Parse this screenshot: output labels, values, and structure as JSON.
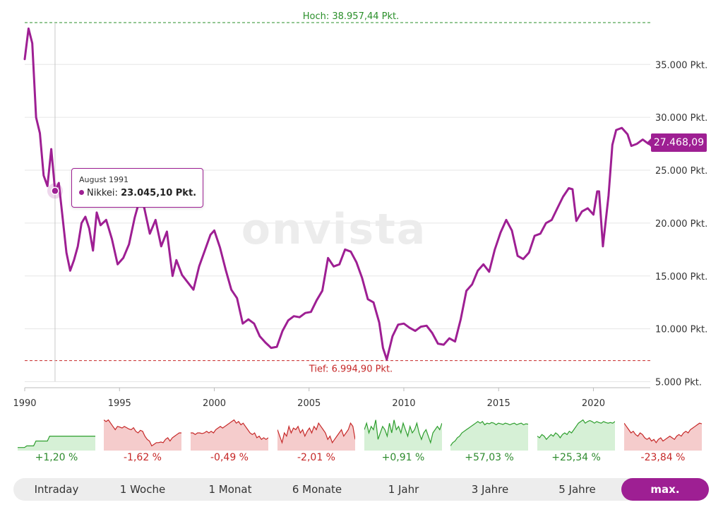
{
  "chart_data": {
    "type": "line",
    "series": [
      {
        "name": "Nikkei",
        "x": [
          1990.0,
          1990.2,
          1990.4,
          1990.6,
          1990.8,
          1991.0,
          1991.2,
          1991.4,
          1991.6,
          1991.8,
          1992.0,
          1992.2,
          1992.4,
          1992.6,
          1992.8,
          1993.0,
          1993.2,
          1993.4,
          1993.6,
          1993.8,
          1994.0,
          1994.3,
          1994.6,
          1994.9,
          1995.2,
          1995.5,
          1995.8,
          1996.0,
          1996.3,
          1996.6,
          1996.9,
          1997.2,
          1997.5,
          1997.8,
          1998.0,
          1998.3,
          1998.6,
          1998.9,
          1999.2,
          1999.5,
          1999.8,
          2000.0,
          2000.3,
          2000.6,
          2000.9,
          2001.2,
          2001.5,
          2001.8,
          2002.1,
          2002.4,
          2002.7,
          2003.0,
          2003.3,
          2003.6,
          2003.9,
          2004.2,
          2004.5,
          2004.8,
          2005.1,
          2005.4,
          2005.7,
          2006.0,
          2006.3,
          2006.6,
          2006.9,
          2007.2,
          2007.5,
          2007.8,
          2008.1,
          2008.4,
          2008.7,
          2008.9,
          2009.1,
          2009.4,
          2009.7,
          2010.0,
          2010.3,
          2010.6,
          2010.9,
          2011.2,
          2011.5,
          2011.8,
          2012.1,
          2012.4,
          2012.7,
          2013.0,
          2013.3,
          2013.6,
          2013.9,
          2014.2,
          2014.5,
          2014.8,
          2015.1,
          2015.4,
          2015.7,
          2016.0,
          2016.3,
          2016.6,
          2016.9,
          2017.2,
          2017.5,
          2017.8,
          2018.1,
          2018.4,
          2018.7,
          2018.9,
          2019.1,
          2019.4,
          2019.7,
          2020.0,
          2020.2,
          2020.3,
          2020.5,
          2020.8,
          2021.0,
          2021.2,
          2021.5,
          2021.8,
          2022.0,
          2022.3,
          2022.6,
          2022.9,
          2023.0
        ],
        "values": [
          35500,
          38400,
          37000,
          30000,
          28500,
          24500,
          23500,
          27000,
          23045,
          23800,
          20500,
          17200,
          15500,
          16500,
          17800,
          20000,
          20600,
          19500,
          17400,
          21000,
          19800,
          20300,
          18500,
          16100,
          16700,
          18000,
          20500,
          21800,
          21500,
          19000,
          20300,
          17800,
          19200,
          15000,
          16500,
          15100,
          14400,
          13700,
          15900,
          17400,
          18900,
          19300,
          17700,
          15600,
          13700,
          12900,
          10500,
          10900,
          10500,
          9300,
          8700,
          8200,
          8300,
          9800,
          10800,
          11200,
          11100,
          11500,
          11600,
          12700,
          13600,
          16700,
          15900,
          16100,
          17500,
          17300,
          16300,
          14800,
          12800,
          12500,
          10600,
          8200,
          7100,
          9300,
          10400,
          10500,
          10100,
          9800,
          10200,
          10300,
          9600,
          8600,
          8500,
          9100,
          8800,
          10900,
          13600,
          14200,
          15500,
          16100,
          15400,
          17500,
          19100,
          20300,
          19300,
          16900,
          16600,
          17200,
          18800,
          19000,
          20000,
          20300,
          21400,
          22500,
          23300,
          23200,
          20200,
          21100,
          21400,
          20800,
          23000,
          23000,
          17800,
          22600,
          27400,
          28800,
          29000,
          28400,
          27300,
          27500,
          27900,
          27500,
          27468
        ]
      }
    ],
    "xlim": [
      1990,
      2023
    ],
    "ylim": [
      4500,
      38960
    ],
    "x_ticks": [
      "1990",
      "1995",
      "2000",
      "2005",
      "2010",
      "2015",
      "2020"
    ],
    "y_ticks": [
      "5.000 Pkt.",
      "10.000 Pkt.",
      "15.000 Pkt.",
      "20.000 Pkt.",
      "25.000 Pkt.",
      "30.000 Pkt.",
      "35.000 Pkt."
    ],
    "high": {
      "value": 38957.44,
      "label": "Hoch: 38.957,44 Pkt."
    },
    "low": {
      "value": 6994.9,
      "label": "Tief: 6.994,90 Pkt."
    },
    "last_price": "27.468,09",
    "tooltip": {
      "date": "August 1991",
      "series": "Nikkei",
      "value": "23.045,10 Pkt.",
      "x": 1991.6,
      "y": 23045
    },
    "watermark": "onvista",
    "colors": {
      "line": "#9e1f93",
      "high": "#2a8f2a",
      "low": "#c62828",
      "grid": "#e6e6e6"
    }
  },
  "performance": [
    {
      "pct": "+1,20 %",
      "trend": "up",
      "spark": [
        0.05,
        0.05,
        0.05,
        0.05,
        0.1,
        0.1,
        0.1,
        0.1,
        0.25,
        0.25,
        0.25,
        0.25,
        0.25,
        0.25,
        0.4,
        0.4,
        0.4,
        0.4,
        0.4,
        0.4,
        0.4,
        0.4,
        0.4,
        0.4,
        0.4,
        0.4,
        0.4,
        0.4,
        0.4,
        0.4,
        0.4,
        0.4,
        0.4,
        0.4,
        0.4
      ]
    },
    {
      "pct": "-1,62 %",
      "trend": "down",
      "spark": [
        0.9,
        0.85,
        0.9,
        0.8,
        0.7,
        0.6,
        0.7,
        0.68,
        0.65,
        0.7,
        0.66,
        0.62,
        0.6,
        0.66,
        0.55,
        0.5,
        0.58,
        0.55,
        0.4,
        0.3,
        0.25,
        0.1,
        0.15,
        0.2,
        0.2,
        0.22,
        0.2,
        0.3,
        0.35,
        0.25,
        0.35,
        0.4,
        0.45,
        0.5,
        0.5
      ]
    },
    {
      "pct": "-0,49 %",
      "trend": "down",
      "spark": [
        0.5,
        0.5,
        0.45,
        0.5,
        0.5,
        0.48,
        0.5,
        0.55,
        0.5,
        0.55,
        0.5,
        0.6,
        0.65,
        0.7,
        0.65,
        0.7,
        0.75,
        0.8,
        0.85,
        0.9,
        0.8,
        0.85,
        0.75,
        0.8,
        0.7,
        0.6,
        0.5,
        0.45,
        0.5,
        0.35,
        0.4,
        0.3,
        0.35,
        0.3,
        0.35
      ]
    },
    {
      "pct": "-2,01 %",
      "trend": "down",
      "spark": [
        0.6,
        0.4,
        0.2,
        0.5,
        0.4,
        0.7,
        0.5,
        0.65,
        0.6,
        0.7,
        0.5,
        0.6,
        0.4,
        0.55,
        0.65,
        0.5,
        0.7,
        0.6,
        0.8,
        0.7,
        0.6,
        0.5,
        0.3,
        0.4,
        0.2,
        0.3,
        0.4,
        0.5,
        0.6,
        0.4,
        0.5,
        0.6,
        0.8,
        0.7,
        0.3
      ]
    },
    {
      "pct": "+0,91 %",
      "trend": "up",
      "spark": [
        0.6,
        0.8,
        0.5,
        0.7,
        0.6,
        0.9,
        0.3,
        0.5,
        0.7,
        0.6,
        0.4,
        0.8,
        0.5,
        0.9,
        0.6,
        0.7,
        0.5,
        0.8,
        0.6,
        0.4,
        0.7,
        0.5,
        0.6,
        0.8,
        0.5,
        0.3,
        0.5,
        0.6,
        0.4,
        0.2,
        0.5,
        0.6,
        0.7,
        0.6,
        0.8
      ]
    },
    {
      "pct": "+57,03 %",
      "trend": "up",
      "spark": [
        0.1,
        0.2,
        0.25,
        0.35,
        0.4,
        0.5,
        0.55,
        0.6,
        0.65,
        0.7,
        0.75,
        0.8,
        0.85,
        0.8,
        0.85,
        0.75,
        0.8,
        0.78,
        0.82,
        0.8,
        0.75,
        0.8,
        0.78,
        0.76,
        0.8,
        0.78,
        0.75,
        0.78,
        0.8,
        0.75,
        0.78,
        0.8,
        0.75,
        0.78,
        0.77
      ]
    },
    {
      "pct": "+25,34 %",
      "trend": "up",
      "spark": [
        0.4,
        0.35,
        0.45,
        0.4,
        0.3,
        0.38,
        0.45,
        0.4,
        0.5,
        0.45,
        0.35,
        0.45,
        0.5,
        0.45,
        0.55,
        0.5,
        0.6,
        0.7,
        0.8,
        0.85,
        0.9,
        0.8,
        0.85,
        0.88,
        0.85,
        0.8,
        0.85,
        0.82,
        0.8,
        0.85,
        0.82,
        0.8,
        0.82,
        0.8,
        0.85
      ]
    },
    {
      "pct": "-23,84 %",
      "trend": "down",
      "spark": [
        0.8,
        0.7,
        0.6,
        0.5,
        0.55,
        0.45,
        0.4,
        0.5,
        0.45,
        0.35,
        0.3,
        0.35,
        0.25,
        0.3,
        0.2,
        0.3,
        0.35,
        0.25,
        0.3,
        0.35,
        0.4,
        0.35,
        0.3,
        0.4,
        0.45,
        0.4,
        0.5,
        0.55,
        0.5,
        0.6,
        0.65,
        0.7,
        0.75,
        0.8,
        0.78
      ]
    }
  ],
  "tabs": [
    {
      "label": "Intraday",
      "active": false
    },
    {
      "label": "1 Woche",
      "active": false
    },
    {
      "label": "1 Monat",
      "active": false
    },
    {
      "label": "6 Monate",
      "active": false
    },
    {
      "label": "1 Jahr",
      "active": false
    },
    {
      "label": "3 Jahre",
      "active": false
    },
    {
      "label": "5 Jahre",
      "active": false
    },
    {
      "label": "max.",
      "active": true
    }
  ]
}
